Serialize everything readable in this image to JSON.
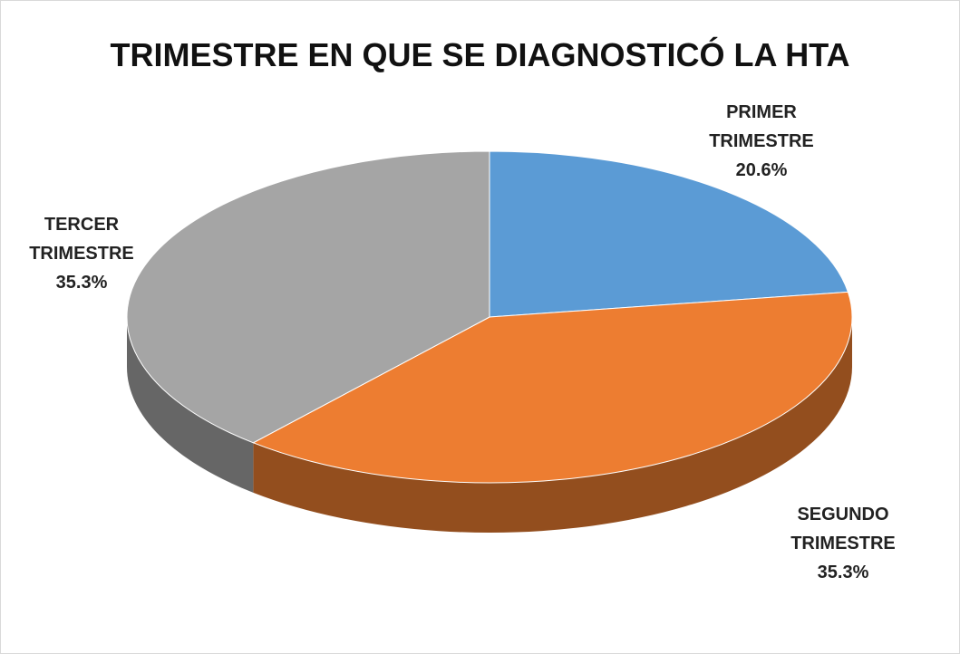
{
  "chart_data": {
    "type": "pie",
    "title": "TRIMESTRE EN QUE SE DIAGNOSTICÓ LA HTA",
    "categories": [
      "PRIMER TRIMESTRE",
      "SEGUNDO TRIMESTRE",
      "TERCER TRIMESTRE"
    ],
    "values": [
      20.6,
      35.3,
      35.3
    ],
    "value_labels": [
      "20.6%",
      "35.3%",
      "35.3%"
    ],
    "colors": [
      "#5b9bd5",
      "#ed7d31",
      "#a5a5a5"
    ]
  }
}
